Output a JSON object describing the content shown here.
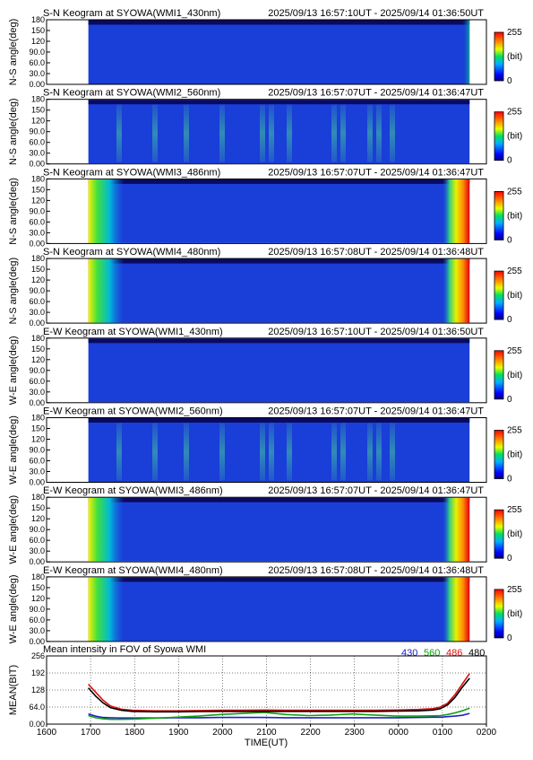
{
  "chart_data": [
    {
      "type": "heatmap",
      "title": "S-N Keogram at SYOWA(WMI1_430nm)",
      "time_range": "2025/09/13 16:57:10UT - 2025/09/14 01:36:50UT",
      "ylabel": "N-S angle(deg)",
      "yticks": [
        "0.00",
        "30.0",
        "60.0",
        "90.0",
        "120",
        "150",
        "180"
      ],
      "ylim": [
        0,
        180
      ],
      "colorbar": {
        "labels": [
          "255",
          "(bit)",
          "0"
        ],
        "range": [
          0,
          255
        ]
      },
      "edge": "weak",
      "streaks": 0.0
    },
    {
      "type": "heatmap",
      "title": "S-N Keogram at SYOWA(WMI2_560nm)",
      "time_range": "2025/09/13 16:57:07UT - 2025/09/14 01:36:47UT",
      "ylabel": "N-S angle(deg)",
      "yticks": [
        "0.00",
        "30.0",
        "60.0",
        "90.0",
        "120",
        "150",
        "180"
      ],
      "ylim": [
        0,
        180
      ],
      "colorbar": {
        "labels": [
          "255",
          "(bit)",
          "0"
        ],
        "range": [
          0,
          255
        ]
      },
      "edge": "none",
      "streaks": 1.0
    },
    {
      "type": "heatmap",
      "title": "S-N Keogram at SYOWA(WMI3_486nm)",
      "time_range": "2025/09/13 16:57:07UT - 2025/09/14 01:36:47UT",
      "ylabel": "N-S angle(deg)",
      "yticks": [
        "0.00",
        "30.0",
        "60.0",
        "90.0",
        "120",
        "150",
        "180"
      ],
      "ylim": [
        0,
        180
      ],
      "colorbar": {
        "labels": [
          "255",
          "(bit)",
          "0"
        ],
        "range": [
          0,
          255
        ]
      },
      "edge": "strong",
      "streaks": 0.0
    },
    {
      "type": "heatmap",
      "title": "S-N Keogram at SYOWA(WMI4_480nm)",
      "time_range": "2025/09/13 16:57:08UT - 2025/09/14 01:36:48UT",
      "ylabel": "N-S angle(deg)",
      "yticks": [
        "0.00",
        "30.0",
        "60.0",
        "90.0",
        "120",
        "150",
        "180"
      ],
      "ylim": [
        0,
        180
      ],
      "colorbar": {
        "labels": [
          "255",
          "(bit)",
          "0"
        ],
        "range": [
          0,
          255
        ]
      },
      "edge": "strong",
      "streaks": 0.0
    },
    {
      "type": "heatmap",
      "title": "E-W Keogram at SYOWA(WMI1_430nm)",
      "time_range": "2025/09/13 16:57:10UT - 2025/09/14 01:36:50UT",
      "ylabel": "W-E angle(deg)",
      "yticks": [
        "0.00",
        "30.0",
        "60.0",
        "90.0",
        "120",
        "150",
        "180"
      ],
      "ylim": [
        0,
        180
      ],
      "colorbar": {
        "labels": [
          "255",
          "(bit)",
          "0"
        ],
        "range": [
          0,
          255
        ]
      },
      "edge": "none",
      "streaks": 0.0
    },
    {
      "type": "heatmap",
      "title": "E-W Keogram at SYOWA(WMI2_560nm)",
      "time_range": "2025/09/13 16:57:07UT - 2025/09/14 01:36:47UT",
      "ylabel": "W-E angle(deg)",
      "yticks": [
        "0.00",
        "30.0",
        "60.0",
        "90.0",
        "120",
        "150",
        "180"
      ],
      "ylim": [
        0,
        180
      ],
      "colorbar": {
        "labels": [
          "255",
          "(bit)",
          "0"
        ],
        "range": [
          0,
          255
        ]
      },
      "edge": "none",
      "streaks": 1.0
    },
    {
      "type": "heatmap",
      "title": "E-W Keogram at SYOWA(WMI3_486nm)",
      "time_range": "2025/09/13 16:57:07UT - 2025/09/14 01:36:47UT",
      "ylabel": "W-E angle(deg)",
      "yticks": [
        "0.00",
        "30.0",
        "60.0",
        "90.0",
        "120",
        "150",
        "180"
      ],
      "ylim": [
        0,
        180
      ],
      "colorbar": {
        "labels": [
          "255",
          "(bit)",
          "0"
        ],
        "range": [
          0,
          255
        ]
      },
      "edge": "strong",
      "streaks": 0.0
    },
    {
      "type": "heatmap",
      "title": "E-W Keogram at SYOWA(WMI4_480nm)",
      "time_range": "2025/09/13 16:57:08UT - 2025/09/14 01:36:48UT",
      "ylabel": "W-E angle(deg)",
      "yticks": [
        "0.00",
        "30.0",
        "60.0",
        "90.0",
        "120",
        "150",
        "180"
      ],
      "ylim": [
        0,
        180
      ],
      "colorbar": {
        "labels": [
          "255",
          "(bit)",
          "0"
        ],
        "range": [
          0,
          255
        ]
      },
      "edge": "strong",
      "streaks": 0.0
    },
    {
      "type": "line",
      "title": "Mean intensity in FOV of Syowa WMI",
      "xlabel": "TIME(UT)",
      "ylabel": "MEAN(BIT)",
      "xticks": [
        "1600",
        "1700",
        "1800",
        "1900",
        "2000",
        "2100",
        "2200",
        "2300",
        "0000",
        "0100",
        "0200"
      ],
      "yticks": [
        "0.00",
        "64.0",
        "128",
        "192",
        "256"
      ],
      "ylim": [
        0,
        256
      ],
      "grid": true,
      "legend_position": "top-right",
      "x": [
        0,
        10,
        20,
        30,
        45,
        60,
        90,
        120,
        150,
        180,
        210,
        240,
        270,
        300,
        330,
        360,
        390,
        420,
        450,
        470,
        480,
        490,
        500,
        510,
        520
      ],
      "series": [
        {
          "name": "430",
          "color": "#2020c8",
          "values": [
            38,
            30,
            25,
            24,
            23,
            23,
            23,
            24,
            24,
            25,
            25,
            25,
            24,
            24,
            24,
            24,
            24,
            24,
            25,
            26,
            26,
            28,
            30,
            33,
            40
          ]
        },
        {
          "name": "560",
          "color": "#10a010",
          "values": [
            32,
            24,
            20,
            18,
            18,
            19,
            22,
            26,
            30,
            36,
            40,
            44,
            36,
            32,
            34,
            38,
            34,
            30,
            30,
            31,
            32,
            36,
            42,
            50,
            60
          ]
        },
        {
          "name": "486",
          "color": "#dd1010",
          "values": [
            150,
            120,
            90,
            68,
            56,
            52,
            50,
            50,
            51,
            52,
            52,
            53,
            52,
            52,
            52,
            52,
            52,
            53,
            55,
            58,
            64,
            78,
            110,
            150,
            190
          ]
        },
        {
          "name": "480",
          "color": "#000000",
          "values": [
            136,
            105,
            80,
            62,
            52,
            48,
            46,
            46,
            47,
            48,
            48,
            48,
            48,
            48,
            48,
            48,
            48,
            49,
            50,
            53,
            58,
            72,
            100,
            138,
            172
          ]
        }
      ]
    }
  ]
}
